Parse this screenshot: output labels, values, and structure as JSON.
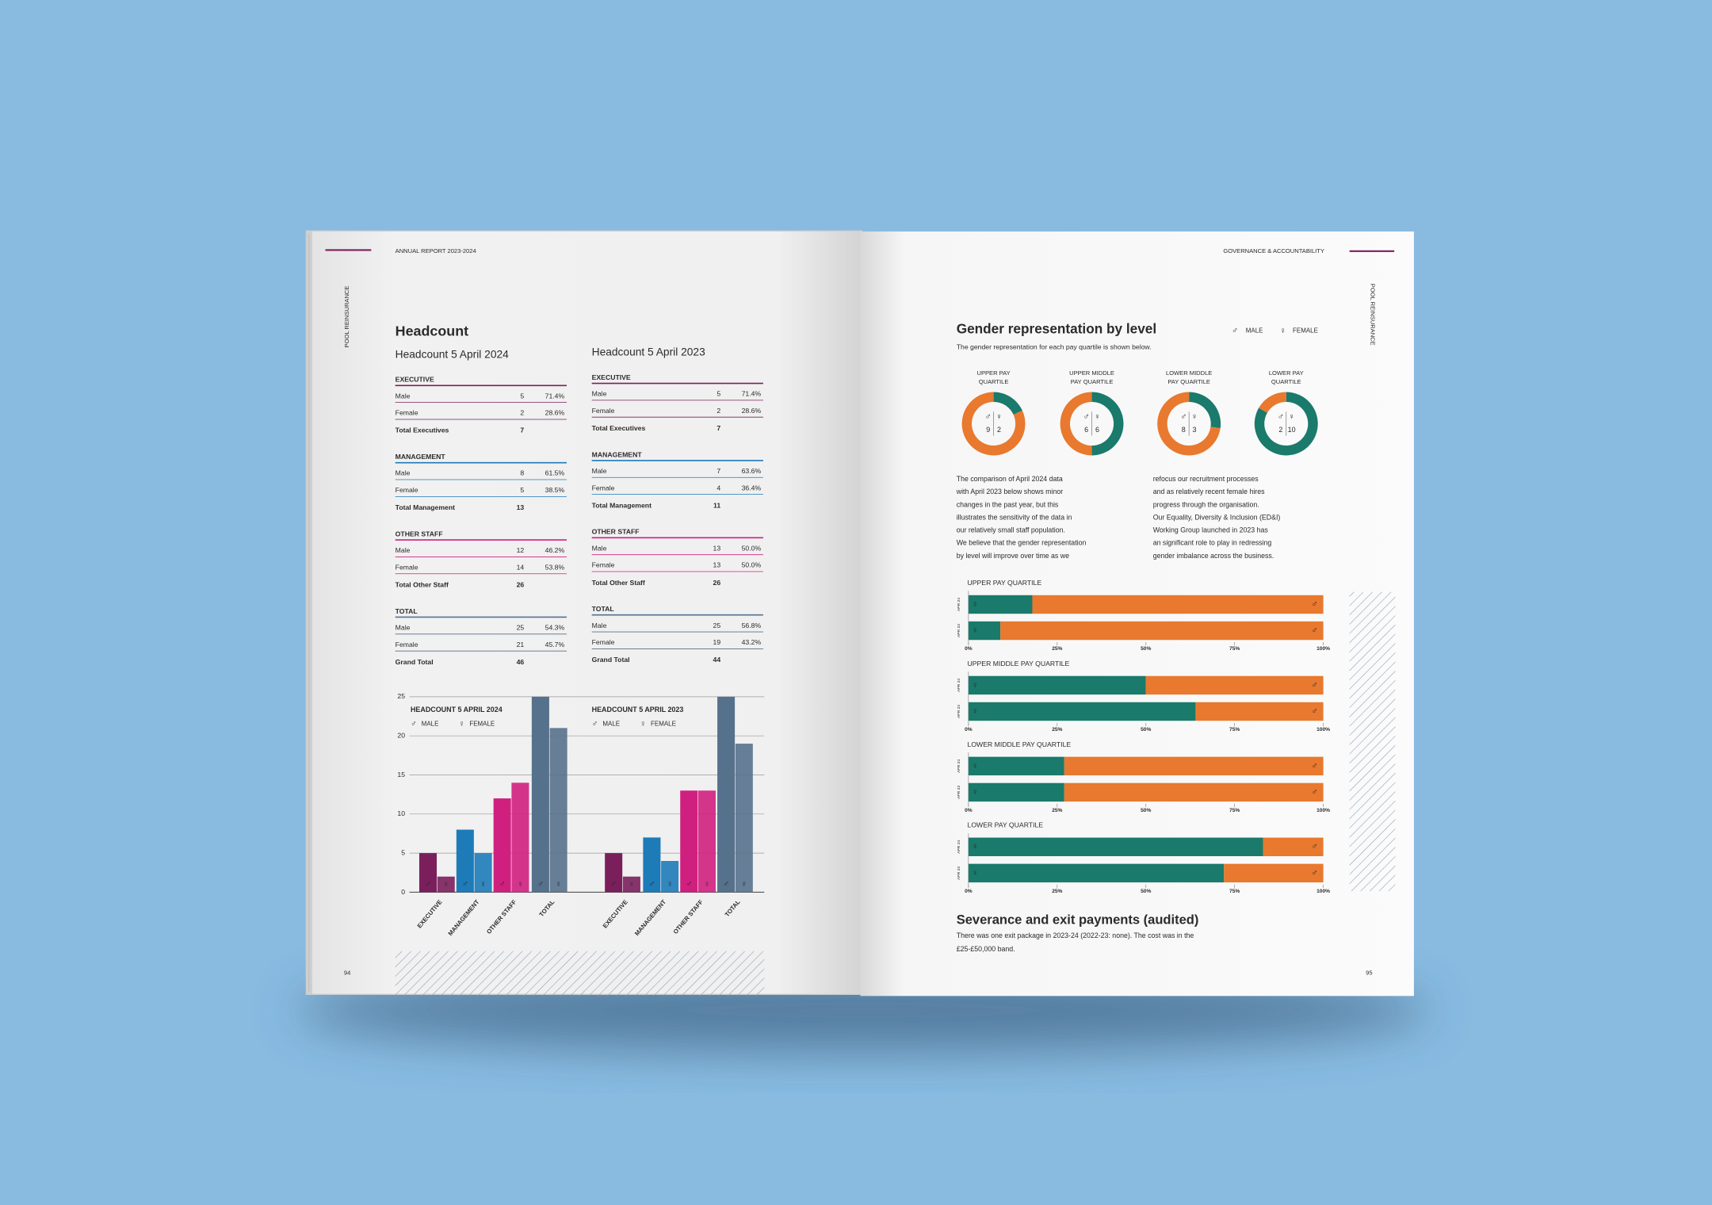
{
  "symbols": {
    "male": "♂",
    "female": "♀"
  },
  "legend": {
    "male": "MALE",
    "female": "FEMALE"
  },
  "left_page": {
    "running_head": "ANNUAL REPORT 2023-2024",
    "side_label": "POOL REINSURANCE",
    "page_number": "94",
    "title": "Headcount",
    "tables": [
      {
        "title": "Headcount 5 April 2024",
        "chart_title": "HEADCOUNT 5 APRIL 2024",
        "sections": [
          {
            "heading": "EXECUTIVE",
            "color": "#7a1f5c",
            "rows": [
              [
                "Male",
                5,
                "71.4%"
              ],
              [
                "Female",
                2,
                "28.6%"
              ]
            ],
            "total": [
              "Total Executives",
              7
            ]
          },
          {
            "heading": "MANAGEMENT",
            "color": "#1d7bb8",
            "rows": [
              [
                "Male",
                8,
                "61.5%"
              ],
              [
                "Female",
                5,
                "38.5%"
              ]
            ],
            "total": [
              "Total Management",
              13
            ]
          },
          {
            "heading": "OTHER STAFF",
            "color": "#d0207f",
            "rows": [
              [
                "Male",
                12,
                "46.2%"
              ],
              [
                "Female",
                14,
                "53.8%"
              ]
            ],
            "total": [
              "Total Other Staff",
              26
            ]
          },
          {
            "heading": "TOTAL",
            "color": "#56718c",
            "rows": [
              [
                "Male",
                25,
                "54.3%"
              ],
              [
                "Female",
                21,
                "45.7%"
              ]
            ],
            "total": [
              "Grand Total",
              46
            ]
          }
        ]
      },
      {
        "title": "Headcount 5 April 2023",
        "chart_title": "HEADCOUNT 5 APRIL 2023",
        "sections": [
          {
            "heading": "EXECUTIVE",
            "color": "#7a1f5c",
            "rows": [
              [
                "Male",
                5,
                "71.4%"
              ],
              [
                "Female",
                2,
                "28.6%"
              ]
            ],
            "total": [
              "Total Executives",
              7
            ]
          },
          {
            "heading": "MANAGEMENT",
            "color": "#1d7bb8",
            "rows": [
              [
                "Male",
                7,
                "63.6%"
              ],
              [
                "Female",
                4,
                "36.4%"
              ]
            ],
            "total": [
              "Total Management",
              11
            ]
          },
          {
            "heading": "OTHER STAFF",
            "color": "#d0207f",
            "rows": [
              [
                "Male",
                13,
                "50.0%"
              ],
              [
                "Female",
                13,
                "50.0%"
              ]
            ],
            "total": [
              "Total Other Staff",
              26
            ]
          },
          {
            "heading": "TOTAL",
            "color": "#56718c",
            "rows": [
              [
                "Male",
                25,
                "56.8%"
              ],
              [
                "Female",
                19,
                "43.2%"
              ]
            ],
            "total": [
              "Grand Total",
              44
            ]
          }
        ]
      }
    ],
    "chart_axis": {
      "ylim": [
        0,
        25
      ],
      "yticks": [
        0,
        5,
        10,
        15,
        20,
        25
      ]
    }
  },
  "right_page": {
    "running_head": "GOVERNANCE & ACCOUNTABILITY",
    "side_label": "POOL REINSURANCE",
    "page_number": "95",
    "title": "Gender representation by level",
    "subtitle": "The gender representation for each pay quartile is shown below.",
    "colors": {
      "male": "#e8792e",
      "female": "#1a7a6b"
    },
    "donuts": [
      {
        "label": [
          "UPPER PAY",
          "QUARTILE"
        ],
        "male": 9,
        "female": 2
      },
      {
        "label": [
          "UPPER MIDDLE",
          "PAY QUARTILE"
        ],
        "male": 6,
        "female": 6
      },
      {
        "label": [
          "LOWER MIDDLE",
          "PAY QUARTILE"
        ],
        "male": 8,
        "female": 3
      },
      {
        "label": [
          "LOWER PAY",
          "QUARTILE"
        ],
        "male": 2,
        "female": 10
      }
    ],
    "paragraph": [
      [
        "The comparison of April 2024 data",
        "with April 2023 below shows minor",
        "changes in the past year, but this",
        "illustrates the sensitivity of the data in",
        "our relatively small staff population.",
        "We believe that the gender representation",
        "by level will improve over time as we"
      ],
      [
        "refocus our recruitment processes",
        "and as relatively recent female hires",
        "progress through the organisation.",
        "Our Equality, Diversity & Inclusion (ED&I)",
        "Working Group launched in 2023 has",
        "an significant role to play in redressing",
        "gender imbalance across the business."
      ]
    ],
    "bar_axis": {
      "xlim": [
        0,
        100
      ],
      "xticks": [
        {
          "value": 0,
          "label": "0%"
        },
        {
          "value": 25,
          "label": "25%"
        },
        {
          "value": 50,
          "label": "50%"
        },
        {
          "value": 75,
          "label": "75%"
        },
        {
          "value": 100,
          "label": "100%"
        }
      ]
    },
    "quartile_bars": [
      {
        "title": "UPPER PAY QUARTILE",
        "rows": [
          {
            "label": "APR 24",
            "female": 18,
            "male": 82
          },
          {
            "label": "APR 23",
            "female": 9,
            "male": 91
          }
        ]
      },
      {
        "title": "UPPER MIDDLE PAY QUARTILE",
        "rows": [
          {
            "label": "APR 24",
            "female": 50,
            "male": 50
          },
          {
            "label": "APR 23",
            "female": 64,
            "male": 36
          }
        ]
      },
      {
        "title": "LOWER MIDDLE PAY QUARTILE",
        "rows": [
          {
            "label": "APR 24",
            "female": 27,
            "male": 73
          },
          {
            "label": "APR 23",
            "female": 27,
            "male": 73
          }
        ]
      },
      {
        "title": "LOWER PAY QUARTILE",
        "rows": [
          {
            "label": "APR 24",
            "female": 83,
            "male": 17
          },
          {
            "label": "APR 23",
            "female": 72,
            "male": 28
          }
        ]
      }
    ],
    "severance_title": "Severance and exit payments (audited)",
    "severance_text": [
      "There was one exit package in 2023-24 (2022-23: none). The cost was in the",
      "£25-£50,000 band."
    ]
  }
}
